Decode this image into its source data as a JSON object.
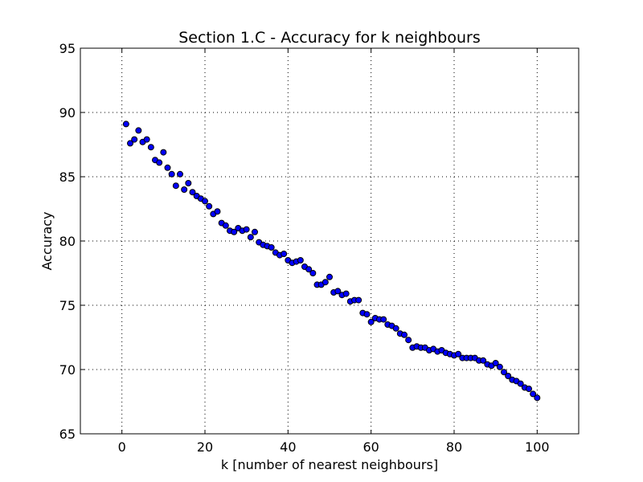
{
  "chart_data": {
    "type": "scatter",
    "title": "Section 1.C - Accuracy for k neighbours",
    "xlabel": "k [number of nearest neighbours]",
    "ylabel": "Accuracy",
    "xlim": [
      -10,
      110
    ],
    "ylim": [
      65,
      95
    ],
    "xticks": [
      0,
      20,
      40,
      60,
      80,
      100
    ],
    "yticks": [
      65,
      70,
      75,
      80,
      85,
      90,
      95
    ],
    "grid": true,
    "marker_color": "#0000ff",
    "series": [
      {
        "x": [
          1,
          2,
          3,
          4,
          5,
          6,
          7,
          8,
          9,
          10,
          11,
          12,
          13,
          14,
          15,
          16,
          17,
          18,
          19,
          20,
          21,
          22,
          23,
          24,
          25,
          26,
          27,
          28,
          29,
          30,
          31,
          32,
          33,
          34,
          35,
          36,
          37,
          38,
          39,
          40,
          41,
          42,
          43,
          44,
          45,
          46,
          47,
          48,
          49,
          50,
          51,
          52,
          53,
          54,
          55,
          56,
          57,
          58,
          59,
          60,
          61,
          62,
          63,
          64,
          65,
          66,
          67,
          68,
          69,
          70,
          71,
          72,
          73,
          74,
          75,
          76,
          77,
          78,
          79,
          80,
          81,
          82,
          83,
          84,
          85,
          86,
          87,
          88,
          89,
          90,
          91,
          92,
          93,
          94,
          95,
          96,
          97,
          98,
          99,
          100
        ],
        "y": [
          89.1,
          87.6,
          87.9,
          88.6,
          87.7,
          87.9,
          87.3,
          86.3,
          86.1,
          86.9,
          85.7,
          85.2,
          84.3,
          85.2,
          84.0,
          84.5,
          83.8,
          83.5,
          83.3,
          83.1,
          82.7,
          82.1,
          82.3,
          81.4,
          81.2,
          80.8,
          80.7,
          81.0,
          80.8,
          80.9,
          80.3,
          80.7,
          79.9,
          79.7,
          79.6,
          79.5,
          79.1,
          78.9,
          79.0,
          78.5,
          78.3,
          78.4,
          78.5,
          78.0,
          77.8,
          77.5,
          76.6,
          76.6,
          76.8,
          77.2,
          76.0,
          76.1,
          75.8,
          75.9,
          75.3,
          75.4,
          75.4,
          74.4,
          74.3,
          73.7,
          74.0,
          73.9,
          73.9,
          73.5,
          73.4,
          73.2,
          72.8,
          72.7,
          72.3,
          71.7,
          71.8,
          71.7,
          71.7,
          71.5,
          71.6,
          71.4,
          71.5,
          71.3,
          71.2,
          71.1,
          71.2,
          70.9,
          70.9,
          70.9,
          70.9,
          70.7,
          70.7,
          70.4,
          70.3,
          70.5,
          70.2,
          69.8,
          69.5,
          69.2,
          69.1,
          68.9,
          68.6,
          68.5,
          68.1,
          67.8
        ]
      }
    ]
  }
}
